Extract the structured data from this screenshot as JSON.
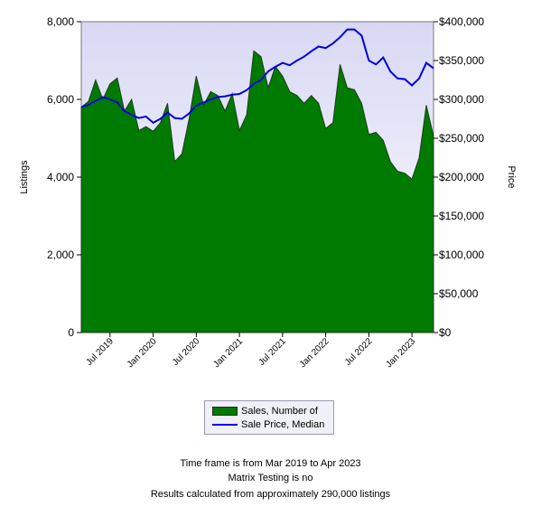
{
  "chart_data": {
    "type": "area+line",
    "left_axis": {
      "label": "Listings",
      "ticks": [
        "0",
        "2,000",
        "4,000",
        "6,000",
        "8,000"
      ],
      "range": [
        0,
        8000
      ]
    },
    "right_axis": {
      "label": "Price",
      "ticks": [
        "$0",
        "$50,000",
        "$100,000",
        "$150,000",
        "$200,000",
        "$250,000",
        "$300,000",
        "$350,000",
        "$400,000"
      ],
      "range": [
        0,
        400000
      ]
    },
    "x_ticks": [
      {
        "label": "Jul 2019",
        "month": 4
      },
      {
        "label": "Jan 2020",
        "month": 10
      },
      {
        "label": "Jul 2020",
        "month": 16
      },
      {
        "label": "Jan 2021",
        "month": 22
      },
      {
        "label": "Jul 2021",
        "month": 28
      },
      {
        "label": "Jan 2022",
        "month": 34
      },
      {
        "label": "Jul 2022",
        "month": 40
      },
      {
        "label": "Jan 2023",
        "month": 46
      }
    ],
    "x_range": [
      "Mar 2019",
      "Apr 2023"
    ],
    "series": [
      {
        "name": "Sales, Number of",
        "axis": "left",
        "color": "#007a00",
        "values": [
          5800,
          5950,
          6500,
          6000,
          6400,
          6550,
          5700,
          6000,
          5200,
          5300,
          5180,
          5400,
          5900,
          4400,
          4600,
          5500,
          6600,
          5850,
          6200,
          6100,
          5700,
          6150,
          5200,
          5600,
          7250,
          7100,
          6300,
          6850,
          6600,
          6200,
          6100,
          5900,
          6100,
          5900,
          5250,
          5400,
          6900,
          6300,
          6250,
          5900,
          5100,
          5150,
          4950,
          4400,
          4150,
          4100,
          3950,
          4500,
          5850,
          5050
        ]
      },
      {
        "name": "Sale Price, Median",
        "axis": "right",
        "color": "#0000dd",
        "values": [
          290000,
          293000,
          298000,
          303000,
          300000,
          296000,
          285000,
          280000,
          276000,
          278000,
          270000,
          275000,
          283000,
          276000,
          275000,
          282000,
          292000,
          296000,
          300000,
          303000,
          304000,
          306000,
          307000,
          312000,
          320000,
          325000,
          336000,
          342000,
          347000,
          344000,
          350000,
          355000,
          362000,
          368000,
          366000,
          372000,
          380000,
          390000,
          390000,
          382000,
          350000,
          345000,
          354000,
          336000,
          327000,
          326000,
          318000,
          327000,
          347000,
          340000
        ]
      }
    ]
  },
  "legend": {
    "items": [
      {
        "label": "Sales, Number of"
      },
      {
        "label": "Sale Price, Median"
      }
    ]
  },
  "footer": {
    "line1": "Time frame is from Mar 2019 to Apr 2023",
    "line2": "Matrix Testing is no",
    "line3": "Results calculated from approximately 290,000 listings"
  },
  "colors": {
    "plot_background_top": "#d8d8f4",
    "plot_background_bottom": "#ffffff",
    "area_fill": "#007a00",
    "area_stroke": "#1e3a1e",
    "price_line": "#0000dd"
  }
}
